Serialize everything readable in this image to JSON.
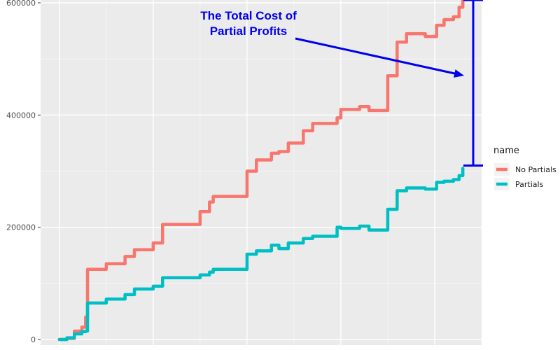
{
  "chart_data": {
    "type": "line",
    "title": "",
    "xlabel": "",
    "ylabel": "",
    "ylim": [
      -10000,
      605000
    ],
    "y_ticks": [
      0,
      200000,
      400000,
      600000
    ],
    "y_tick_labels": [
      "0",
      "200000",
      "400000",
      "600000"
    ],
    "grid": true,
    "legend": {
      "title": "name",
      "position": "right"
    },
    "x": [
      0,
      4,
      8,
      12,
      14,
      15,
      25,
      35,
      40,
      50,
      55,
      75,
      80,
      82,
      100,
      105,
      113,
      117,
      122,
      130,
      135,
      148,
      150,
      160,
      165,
      175,
      180,
      185,
      195,
      201,
      205,
      210,
      213,
      215
    ],
    "series": [
      {
        "name": "No Partials",
        "color": "#f8766d",
        "values": [
          0,
          2000,
          15000,
          22000,
          40000,
          125000,
          135000,
          148000,
          160000,
          172000,
          205000,
          228000,
          245000,
          255000,
          300000,
          320000,
          332000,
          335000,
          350000,
          372000,
          385000,
          395000,
          410000,
          415000,
          408000,
          470000,
          530000,
          545000,
          540000,
          560000,
          570000,
          575000,
          592000,
          605000
        ]
      },
      {
        "name": "Partials",
        "color": "#00bfc4",
        "values": [
          0,
          3000,
          10000,
          14000,
          15000,
          65000,
          72000,
          80000,
          90000,
          95000,
          110000,
          115000,
          120000,
          125000,
          152000,
          158000,
          168000,
          162000,
          172000,
          180000,
          184000,
          200000,
          198000,
          202000,
          195000,
          232000,
          265000,
          270000,
          268000,
          280000,
          282000,
          285000,
          292000,
          305000
        ]
      }
    ],
    "annotation": {
      "text_lines": [
        "The Total Cost of",
        "Partial Profits"
      ],
      "color": "#0000ee",
      "bracket_top": 605000,
      "bracket_bottom": 310000
    }
  }
}
